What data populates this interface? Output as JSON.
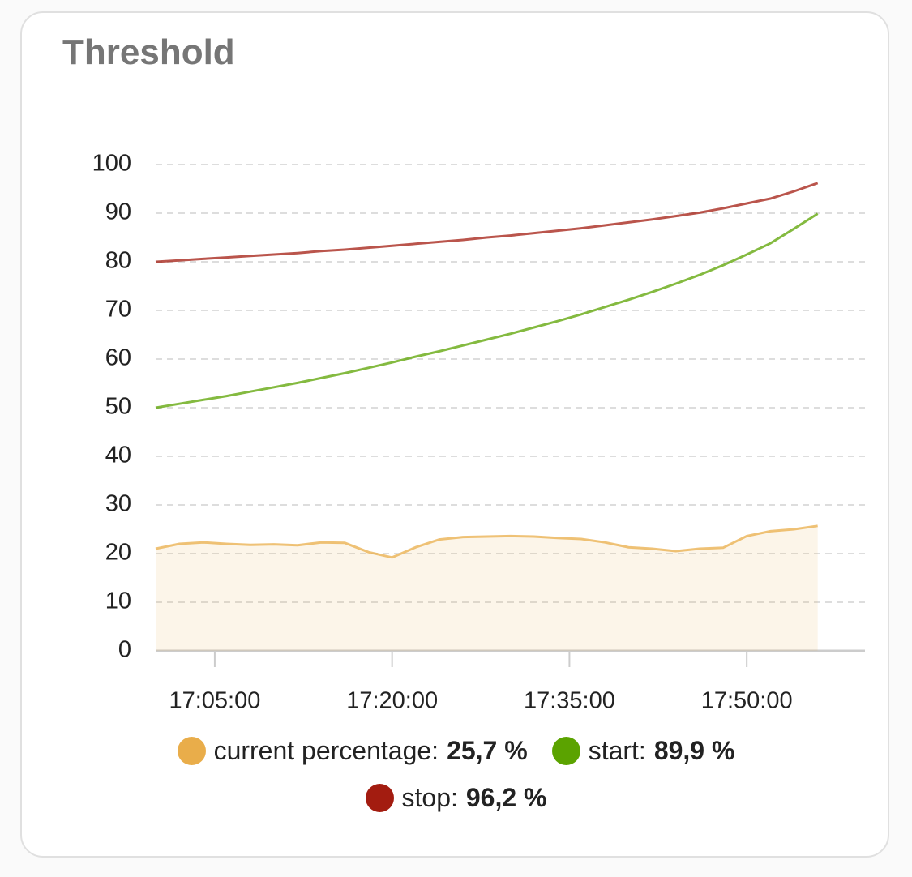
{
  "chart_data": {
    "type": "line",
    "title": "Threshold",
    "x": [
      "17:00:00",
      "17:02:00",
      "17:04:00",
      "17:06:00",
      "17:08:00",
      "17:10:00",
      "17:12:00",
      "17:14:00",
      "17:16:00",
      "17:18:00",
      "17:20:00",
      "17:22:00",
      "17:24:00",
      "17:26:00",
      "17:28:00",
      "17:30:00",
      "17:32:00",
      "17:34:00",
      "17:36:00",
      "17:38:00",
      "17:40:00",
      "17:42:00",
      "17:44:00",
      "17:46:00",
      "17:48:00",
      "17:50:00",
      "17:52:00",
      "17:54:00",
      "17:56:00"
    ],
    "xlim": [
      "17:00:00",
      "18:00:00"
    ],
    "xticks": [
      "17:05:00",
      "17:20:00",
      "17:35:00",
      "17:50:00"
    ],
    "ylim": [
      0,
      100
    ],
    "yticks": [
      0,
      10,
      20,
      30,
      40,
      50,
      60,
      70,
      80,
      90,
      100
    ],
    "grid": true,
    "series": [
      {
        "name": "current percentage",
        "color": "#e9ad4a",
        "area": true,
        "current": 25.7,
        "current_label": "25,7 %",
        "values": [
          21,
          22,
          22.3,
          22,
          21.8,
          21.9,
          21.7,
          22.3,
          22.2,
          20.3,
          19.2,
          21.3,
          22.9,
          23.4,
          23.5,
          23.6,
          23.5,
          23.2,
          23.0,
          22.3,
          21.3,
          21.0,
          20.5,
          21.0,
          21.2,
          23.6,
          24.6,
          25.0,
          25.7
        ]
      },
      {
        "name": "start",
        "color": "#5ba300",
        "area": false,
        "current": 89.9,
        "current_label": "89,9 %",
        "values": [
          50.0,
          50.8,
          51.6,
          52.4,
          53.3,
          54.2,
          55.1,
          56.1,
          57.1,
          58.2,
          59.3,
          60.5,
          61.6,
          62.8,
          64.0,
          65.2,
          66.5,
          67.8,
          69.2,
          70.7,
          72.2,
          73.8,
          75.5,
          77.3,
          79.3,
          81.5,
          83.8,
          86.8,
          89.9
        ]
      },
      {
        "name": "stop",
        "color": "#a31c10",
        "area": false,
        "current": 96.2,
        "current_label": "96,2 %",
        "values": [
          80.0,
          80.3,
          80.6,
          80.9,
          81.2,
          81.5,
          81.8,
          82.2,
          82.5,
          82.9,
          83.3,
          83.7,
          84.1,
          84.5,
          85.0,
          85.4,
          85.9,
          86.4,
          86.9,
          87.5,
          88.1,
          88.7,
          89.4,
          90.1,
          91.0,
          92.0,
          93.0,
          94.5,
          96.2
        ]
      }
    ]
  }
}
